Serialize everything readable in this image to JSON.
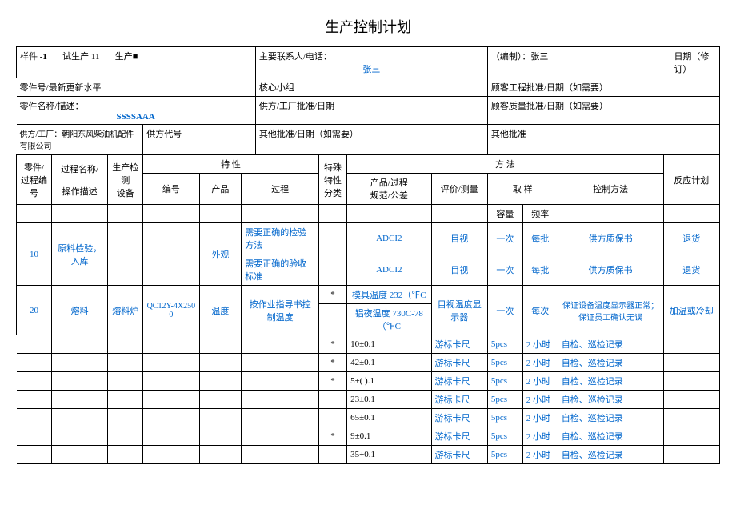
{
  "title": "生产控制计划",
  "header": {
    "col1_prefix": "样件",
    "col1_bold": "-1",
    "col1_mid": "试生产 11",
    "col1_suffix": "生产■",
    "contact_label": "主要联系人/电话：",
    "contact_value": "张三",
    "editor_label": "（编制）：张三",
    "date_label": "日期（修订）",
    "partno_label": "零件号/最新更新水平",
    "core_team_label": "核心小组",
    "cust_eng_label": "顾客工程批准/日期（如需要）",
    "partname_label": "零件名称/描述：",
    "partname_value": "SSSSAAA",
    "supplier_factory_approve_label": "供方/工厂批准/日期",
    "cust_quality_label": "顾客质量批准/日期（如需要）",
    "supplier_factory_label": "供方/工厂：朝阳东风柴油机配件有限公司",
    "supplier_code_label": "供方代号",
    "other_approve_label": "其他批准/日期（如需要）",
    "other_approve2_label": "其他批准"
  },
  "th": {
    "partno": "零件/过程编号",
    "procname": "过程名称/",
    "opdesc": "操作描述",
    "equip": "生产检测",
    "equip2": "设备",
    "char": "特 性",
    "char_no": "编号",
    "char_prod": "产品",
    "char_proc": "过程",
    "spec": "特殊特性分类",
    "method": "方         法",
    "prod_proc": "产品/过程",
    "spec_tol": "规范/公差",
    "eval": "评价/测量",
    "sample": "取      样",
    "cap": "容量",
    "freq": "频率",
    "ctrl": "控制方法",
    "react": "反应计划"
  },
  "rows": [
    {
      "no": "10",
      "name": "原料检验，入库",
      "equip": "",
      "charno": "",
      "prod": "外观",
      "proc": "需要正确的检验方法",
      "spec": "",
      "pp": "ADCI2",
      "eval": "目视",
      "cap": "一次",
      "freq": "每批",
      "ctrl": "供方质保书",
      "react": "退货"
    },
    {
      "no": "",
      "name": "",
      "equip": "",
      "charno": "",
      "prod": "",
      "proc": "需要正确的验收标准",
      "spec": "",
      "pp": "ADCI2",
      "eval": "目视",
      "cap": "一次",
      "freq": "每批",
      "ctrl": "供方质保书",
      "react": "退货"
    },
    {
      "no": "20",
      "name": "熔料",
      "equip": "熔料炉",
      "charno": "QC12Y-4X2500",
      "prod": "温度",
      "proc": "按作业指导书控制温度",
      "spec": "*",
      "pp": "模具温度 232（℉C",
      "eval": "目视温度显示器",
      "cap": "一次",
      "freq": "每次",
      "ctrl": "保证设备温度显示器正常；保证员工确认无误",
      "react": "加温或冷却"
    },
    {
      "no": "",
      "name": "",
      "equip": "",
      "charno": "",
      "prod": "",
      "proc": "",
      "spec": "",
      "pp": "铝夜温度 730C-78（℉C",
      "eval": "",
      "cap": "",
      "freq": "",
      "ctrl": "",
      "react": ""
    },
    {
      "no": "",
      "name": "",
      "equip": "",
      "charno": "",
      "prod": "",
      "proc": "",
      "spec": "*",
      "pp": "10±0.1",
      "eval": "游标卡尺",
      "cap": "5pcs",
      "freq": "2 小时",
      "ctrl": "自检、巡检记录",
      "react": ""
    },
    {
      "no": "",
      "name": "",
      "equip": "",
      "charno": "",
      "prod": "",
      "proc": "",
      "spec": "*",
      "pp": "42±0.1",
      "eval": "游标卡尺",
      "cap": "5pcs",
      "freq": "2 小时",
      "ctrl": "自检、巡检记录",
      "react": ""
    },
    {
      "no": "",
      "name": "",
      "equip": "",
      "charno": "",
      "prod": "",
      "proc": "",
      "spec": "*",
      "pp": "5±( ).1",
      "eval": "游标卡尺",
      "cap": "5pcs",
      "freq": "2 小时",
      "ctrl": "自检、巡检记录",
      "react": ""
    },
    {
      "no": "",
      "name": "",
      "equip": "",
      "charno": "",
      "prod": "",
      "proc": "",
      "spec": "",
      "pp": "23±0.1",
      "eval": "游标卡尺",
      "cap": "5pcs",
      "freq": "2 小时",
      "ctrl": "自检、巡检记录",
      "react": ""
    },
    {
      "no": "",
      "name": "",
      "equip": "",
      "charno": "",
      "prod": "",
      "proc": "",
      "spec": "",
      "pp": "65±0.1",
      "eval": "游标卡尺",
      "cap": "5pcs",
      "freq": "2 小时",
      "ctrl": "自检、巡检记录",
      "react": ""
    },
    {
      "no": "",
      "name": "",
      "equip": "",
      "charno": "",
      "prod": "",
      "proc": "",
      "spec": "*",
      "pp": "9±0.1",
      "eval": "游标卡尺",
      "cap": "5pcs",
      "freq": "2 小时",
      "ctrl": "自检、巡检记录",
      "react": ""
    },
    {
      "no": "",
      "name": "",
      "equip": "",
      "charno": "",
      "prod": "",
      "proc": "",
      "spec": "",
      "pp": "35+0.1",
      "eval": "游标卡尺",
      "cap": "5pcs",
      "freq": "2 小时",
      "ctrl": "自检、巡检记录",
      "react": ""
    }
  ]
}
